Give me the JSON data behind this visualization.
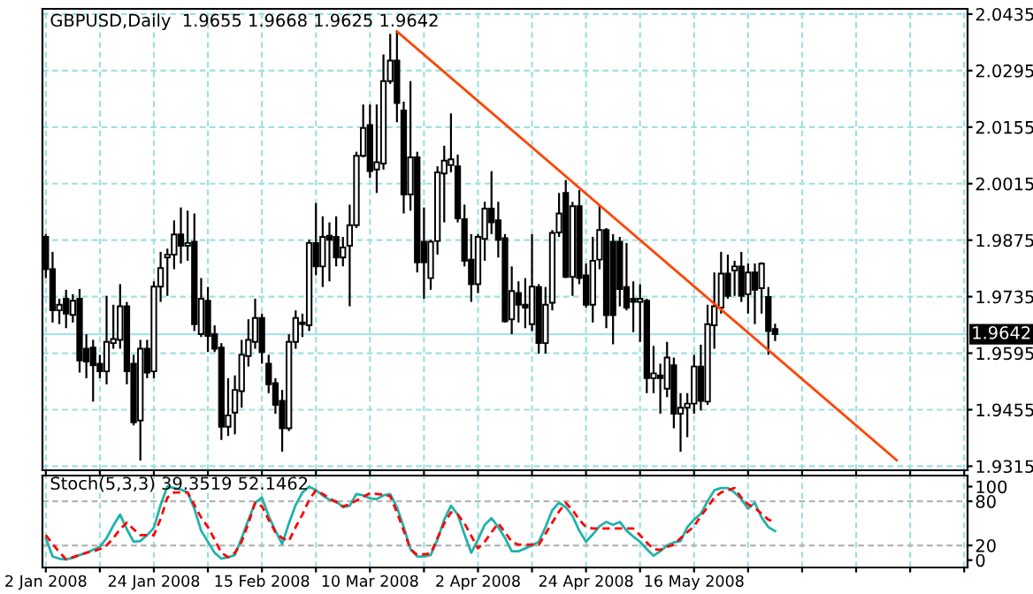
{
  "chart_data": [
    {
      "type": "candlestick",
      "title": "GBPUSD,Daily  1.9655 1.9668 1.9625 1.9642",
      "categories": [
        null,
        null,
        null,
        null,
        null,
        null,
        null,
        null,
        null,
        null,
        null,
        null,
        null,
        null,
        null,
        null,
        null,
        null,
        null,
        null,
        null,
        null,
        null,
        null,
        null,
        null,
        null,
        null,
        null,
        null,
        null,
        null,
        null,
        null,
        null,
        null,
        null,
        null,
        null,
        null,
        null,
        null,
        null,
        null,
        null,
        null,
        null,
        null,
        null,
        null,
        null,
        null,
        null,
        null,
        null,
        null,
        null,
        null,
        null,
        null,
        null,
        null,
        null,
        null,
        null,
        null,
        null,
        null,
        null,
        null,
        null,
        null,
        null,
        null,
        null,
        null,
        null,
        null,
        null,
        null,
        null,
        null,
        null,
        null,
        null,
        null,
        null,
        null,
        null,
        null,
        null,
        null,
        null,
        null,
        null,
        null,
        null,
        null,
        null,
        null,
        null,
        null,
        null,
        null,
        null,
        null,
        null,
        null,
        null,
        null,
        null,
        null,
        null,
        null,
        null,
        null,
        null,
        null,
        null,
        null,
        null,
        null,
        null,
        null,
        null,
        null,
        null,
        null,
        null,
        null,
        null,
        null,
        null,
        null,
        null,
        null,
        null
      ],
      "ohlc": [
        [
          1.9883,
          1.989,
          1.9781,
          1.9803
        ],
        [
          1.9803,
          1.9846,
          1.9671,
          1.9701
        ],
        [
          1.9701,
          1.973,
          1.9667,
          1.9715
        ],
        [
          1.973,
          1.9752,
          1.9657,
          1.9693
        ],
        [
          1.969,
          1.9741,
          1.9671,
          1.9725
        ],
        [
          1.973,
          1.9754,
          1.9547,
          1.9577
        ],
        [
          1.9606,
          1.9642,
          1.9533,
          1.9574
        ],
        [
          1.9609,
          1.9628,
          1.9475,
          1.9565
        ],
        [
          1.9569,
          1.9591,
          1.9533,
          1.955
        ],
        [
          1.955,
          1.9737,
          1.9518,
          1.9623
        ],
        [
          1.962,
          1.9715,
          1.9606,
          1.963
        ],
        [
          1.9628,
          1.9766,
          1.9606,
          1.9711
        ],
        [
          1.9711,
          1.9722,
          1.9518,
          1.955
        ],
        [
          1.9569,
          1.9591,
          1.9416,
          1.9424
        ],
        [
          1.9428,
          1.9628,
          1.9329,
          1.9606
        ],
        [
          1.9606,
          1.9628,
          1.9533,
          1.9547
        ],
        [
          1.955,
          1.9773,
          1.9533,
          1.976
        ],
        [
          1.976,
          1.9846,
          1.9722,
          1.9806
        ],
        [
          1.9832,
          1.9854,
          1.9737,
          1.9839
        ],
        [
          1.9839,
          1.9924,
          1.9803,
          1.9889
        ],
        [
          1.9889,
          1.9956,
          1.9817,
          1.9861
        ],
        [
          1.9861,
          1.9948,
          1.9824,
          1.9868
        ],
        [
          1.9871,
          1.9941,
          1.965,
          1.9667
        ],
        [
          1.9642,
          1.9781,
          1.9635,
          1.973
        ],
        [
          1.9725,
          1.9759,
          1.9598,
          1.9638
        ],
        [
          1.9642,
          1.9664,
          1.9598,
          1.9606
        ],
        [
          1.9609,
          1.962,
          1.938,
          1.9413
        ],
        [
          1.9413,
          1.9533,
          1.939,
          1.9441
        ],
        [
          1.9448,
          1.954,
          1.9394,
          1.9504
        ],
        [
          1.9501,
          1.9628,
          1.946,
          1.9591
        ],
        [
          1.9588,
          1.9679,
          1.9562,
          1.9628
        ],
        [
          1.9623,
          1.973,
          1.9606,
          1.9682
        ],
        [
          1.9682,
          1.9693,
          1.9569,
          1.9598
        ],
        [
          1.9569,
          1.9591,
          1.9496,
          1.9518
        ],
        [
          1.9521,
          1.9533,
          1.9445,
          1.9467
        ],
        [
          1.9477,
          1.9504,
          1.9351,
          1.9409
        ],
        [
          1.9409,
          1.9642,
          1.9402,
          1.9623
        ],
        [
          1.9623,
          1.9701,
          1.9606,
          1.9682
        ],
        [
          1.9667,
          1.9693,
          1.9635,
          1.9671
        ],
        [
          1.9664,
          1.9876,
          1.965,
          1.9868
        ],
        [
          1.9868,
          1.9967,
          1.9788,
          1.981
        ],
        [
          1.981,
          1.9934,
          1.9759,
          1.9883
        ],
        [
          1.9886,
          1.9919,
          1.9773,
          1.9876
        ],
        [
          1.9883,
          1.9934,
          1.981,
          1.9832
        ],
        [
          1.9832,
          1.9883,
          1.981,
          1.9857
        ],
        [
          1.9861,
          1.9963,
          1.9711,
          1.9912
        ],
        [
          1.9912,
          2.0094,
          1.9905,
          2.0084
        ],
        [
          2.0084,
          2.0211,
          2.008,
          2.0153
        ],
        [
          2.016,
          2.0211,
          2.0029,
          2.0046
        ],
        [
          2.005,
          2.0211,
          1.9992,
          2.0068
        ],
        [
          2.0065,
          2.0335,
          2.005,
          2.0269
        ],
        [
          2.0269,
          2.0386,
          2.0262,
          2.032
        ],
        [
          2.032,
          2.0393,
          2.0167,
          2.0215
        ],
        [
          2.0196,
          2.0218,
          1.9941,
          1.9988
        ],
        [
          1.9988,
          2.0269,
          1.9948,
          2.008
        ],
        [
          2.008,
          2.0094,
          1.9795,
          1.982
        ],
        [
          1.9871,
          1.9956,
          1.973,
          1.982
        ],
        [
          1.9781,
          1.9876,
          1.9752,
          1.9871
        ],
        [
          1.9873,
          2.0058,
          1.9839,
          2.0043
        ],
        [
          2.004,
          2.0109,
          1.9919,
          2.0072
        ],
        [
          2.0061,
          2.0189,
          2.0043,
          2.0075
        ],
        [
          2.0058,
          2.0087,
          1.9919,
          1.9929
        ],
        [
          1.9927,
          1.9963,
          1.981,
          1.9824
        ],
        [
          1.9827,
          1.989,
          1.9722,
          1.9766
        ],
        [
          1.9766,
          1.989,
          1.9744,
          1.9883
        ],
        [
          1.9878,
          1.997,
          1.9824,
          1.9953
        ],
        [
          1.9953,
          2.0046,
          1.989,
          1.9919
        ],
        [
          1.9924,
          1.997,
          1.9832,
          1.9876
        ],
        [
          1.988,
          1.989,
          1.9671,
          1.9674
        ],
        [
          1.9679,
          1.981,
          1.9642,
          1.9749
        ],
        [
          1.9744,
          1.9773,
          1.9671,
          1.9715
        ],
        [
          1.9715,
          1.9781,
          1.9657,
          1.9708
        ],
        [
          1.9667,
          1.989,
          1.965,
          1.976
        ],
        [
          1.9759,
          1.9766,
          1.9594,
          1.962
        ],
        [
          1.962,
          1.9759,
          1.9594,
          1.9715
        ],
        [
          1.972,
          1.99,
          1.9701,
          1.9893
        ],
        [
          1.9894,
          1.9992,
          1.9883,
          1.9941
        ],
        [
          1.9992,
          2.0024,
          1.9781,
          1.9784
        ],
        [
          1.9784,
          1.997,
          1.9737,
          1.9959
        ],
        [
          1.9959,
          1.9999,
          1.9766,
          1.9781
        ],
        [
          1.9788,
          1.9817,
          1.9708,
          1.9715
        ],
        [
          1.9715,
          1.9883,
          1.9671,
          1.9824
        ],
        [
          1.9827,
          1.9963,
          1.9803,
          1.99
        ],
        [
          1.99,
          1.9905,
          1.9657,
          1.9689
        ],
        [
          1.9871,
          1.989,
          1.9617,
          1.9689
        ],
        [
          1.9871,
          1.9883,
          1.9711,
          1.9754
        ],
        [
          1.9759,
          1.9868,
          1.9701,
          1.9708
        ],
        [
          1.973,
          1.9773,
          1.9647,
          1.9722
        ],
        [
          1.9722,
          1.9766,
          1.9623,
          1.973
        ],
        [
          1.9725,
          1.973,
          1.9496,
          1.9533
        ],
        [
          1.9533,
          1.9613,
          1.9496,
          1.9545
        ],
        [
          1.954,
          1.9569,
          1.9445,
          1.9533
        ],
        [
          1.9507,
          1.9623,
          1.9486,
          1.9584
        ],
        [
          1.9565,
          1.9584,
          1.9409,
          1.9445
        ],
        [
          1.9445,
          1.9496,
          1.9351,
          1.946
        ],
        [
          1.946,
          1.9496,
          1.9387,
          1.947
        ],
        [
          1.947,
          1.9591,
          1.9445,
          1.9562
        ],
        [
          1.9562,
          1.9616,
          1.9453,
          1.9477
        ],
        [
          1.9475,
          1.9715,
          1.9467,
          1.9667
        ],
        [
          1.9664,
          1.9795,
          1.9606,
          1.9711
        ],
        [
          1.9708,
          1.9846,
          1.9693,
          1.9792
        ],
        [
          1.9792,
          1.9839,
          1.973,
          1.9737
        ],
        [
          1.98,
          1.9824,
          1.9737,
          1.981
        ],
        [
          1.981,
          1.9846,
          1.9722,
          1.9737
        ],
        [
          1.9741,
          1.9817,
          1.9693,
          1.9795
        ],
        [
          1.9795,
          1.9817,
          1.9667,
          1.9752
        ],
        [
          1.9756,
          1.982,
          1.9693,
          1.9817
        ],
        [
          1.9734,
          1.9759,
          1.9591,
          1.965
        ],
        [
          1.9655,
          1.9668,
          1.9625,
          1.9642
        ],
        null,
        null,
        null,
        null,
        null,
        null,
        null,
        null,
        null,
        null,
        null,
        null,
        null,
        null,
        null,
        null,
        null,
        null,
        null,
        null,
        null,
        null,
        null,
        null,
        null,
        null,
        null,
        null
      ],
      "series": [
        {
          "type": "line",
          "color": "#ff4500",
          "values": [
            null,
            null,
            null,
            null,
            null,
            null,
            null,
            null,
            null,
            null,
            null,
            null,
            null,
            null,
            null,
            null,
            null,
            null,
            null,
            null,
            null,
            null,
            null,
            null,
            null,
            null,
            null,
            null,
            null,
            null,
            null,
            null,
            null,
            null,
            null,
            null,
            null,
            null,
            null,
            null,
            null,
            null,
            null,
            null,
            null,
            null,
            null,
            null,
            null,
            null,
            null,
            null,
            2.0392,
            null,
            null,
            null,
            null,
            null,
            null,
            null,
            null,
            null,
            null,
            null,
            null,
            null,
            null,
            null,
            null,
            null,
            null,
            null,
            null,
            null,
            null,
            null,
            null,
            null,
            null,
            null,
            null,
            null,
            null,
            null,
            null,
            null,
            null,
            null,
            null,
            null,
            null,
            null,
            null,
            null,
            null,
            null,
            null,
            null,
            null,
            null,
            null,
            null,
            null,
            null,
            null,
            null,
            null,
            null,
            null,
            null,
            null,
            null,
            null,
            null,
            null,
            null,
            null,
            null,
            null,
            null,
            null,
            null,
            null,
            null,
            null,
            null,
            1.933,
            null,
            null,
            null,
            null,
            null,
            null,
            null,
            null,
            null,
            null
          ]
        }
      ],
      "ylim": [
        1.9305,
        2.0448
      ],
      "yticks": [
        1.9315,
        1.9455,
        1.9595,
        1.9735,
        1.9875,
        2.0015,
        2.0155,
        2.0295,
        2.0435
      ],
      "ref_lines": [
        {
          "axis": "y",
          "value": 1.9642,
          "label": "1.9642",
          "color": "#a8e4e4"
        }
      ],
      "grid": true,
      "tick_labels": "y"
    },
    {
      "type": "line",
      "title": "Stoch(5,3,3) 39.3519 52.1462",
      "categories": [
        "2 Jan 2008",
        null,
        null,
        null,
        null,
        null,
        null,
        null,
        null,
        null,
        null,
        null,
        null,
        null,
        null,
        null,
        "24 Jan 2008",
        null,
        null,
        null,
        null,
        null,
        null,
        null,
        null,
        null,
        null,
        null,
        null,
        null,
        null,
        null,
        "15 Feb 2008",
        null,
        null,
        null,
        null,
        null,
        null,
        null,
        null,
        null,
        null,
        null,
        null,
        null,
        null,
        null,
        "10 Mar 2008",
        null,
        null,
        null,
        null,
        null,
        null,
        null,
        null,
        null,
        null,
        null,
        null,
        null,
        null,
        null,
        "2 Apr 2008",
        null,
        null,
        null,
        null,
        null,
        null,
        null,
        null,
        null,
        null,
        null,
        null,
        null,
        null,
        null,
        "24 Apr 2008",
        null,
        null,
        null,
        null,
        null,
        null,
        null,
        null,
        null,
        null,
        null,
        null,
        null,
        null,
        null,
        "16 May 2008",
        null,
        null,
        null,
        null,
        null,
        null,
        null,
        null,
        null,
        null,
        null,
        null,
        null,
        null,
        null,
        null,
        null,
        null,
        null,
        null,
        null,
        null,
        null,
        null,
        null,
        null,
        null,
        null,
        null,
        null,
        null,
        null,
        null,
        null,
        null,
        null,
        null,
        null,
        null,
        null
      ],
      "series": [
        {
          "color": "#20b2aa",
          "line_style": "solid",
          "values": [
            30,
            5,
            2,
            1,
            3,
            7,
            10,
            14,
            18,
            30,
            47,
            62,
            42,
            25,
            26,
            34,
            44,
            75,
            100,
            98,
            96,
            92,
            70,
            40,
            25,
            10,
            2,
            4,
            7,
            30,
            55,
            78,
            85,
            60,
            40,
            22,
            50,
            75,
            92,
            100,
            95,
            88,
            82,
            80,
            72,
            74,
            90,
            88,
            84,
            83,
            88,
            90,
            72,
            45,
            15,
            5,
            5,
            7,
            28,
            55,
            74,
            62,
            35,
            10,
            28,
            48,
            57,
            45,
            30,
            12,
            12,
            16,
            20,
            25,
            45,
            68,
            78,
            72,
            60,
            40,
            25,
            35,
            46,
            52,
            48,
            52,
            40,
            32,
            25,
            15,
            6,
            12,
            20,
            24,
            26,
            45,
            55,
            63,
            80,
            95,
            98,
            98,
            92,
            83,
            70,
            78,
            58,
            45,
            39.3519,
            null,
            null,
            null,
            null,
            null,
            null,
            null,
            null,
            null,
            null,
            null,
            null,
            null,
            null,
            null,
            null,
            null,
            null,
            null,
            null,
            null,
            null,
            null,
            null,
            null,
            null,
            null,
            null
          ]
        },
        {
          "color": "#ff0000",
          "line_style": "dashed",
          "values": [
            34,
            22,
            11,
            1,
            4,
            7,
            10,
            12,
            15,
            20,
            30,
            42,
            51,
            42,
            34,
            34,
            34,
            56,
            85,
            92,
            92,
            92,
            75,
            58,
            45,
            28,
            10,
            4,
            10,
            25,
            50,
            78,
            73,
            55,
            38,
            30,
            26,
            45,
            62,
            82,
            95,
            90,
            84,
            79,
            73,
            76,
            81,
            86,
            91,
            90,
            89,
            87,
            65,
            40,
            15,
            7,
            8,
            9,
            30,
            50,
            65,
            62,
            50,
            33,
            16,
            25,
            38,
            50,
            38,
            25,
            21,
            21,
            21,
            21,
            36,
            51,
            66,
            78,
            68,
            55,
            45,
            43,
            43,
            43,
            43,
            43,
            43,
            43,
            34,
            24,
            15,
            14,
            18,
            21,
            30,
            38,
            46,
            60,
            72,
            85,
            92,
            95,
            98,
            85,
            76,
            71,
            63,
            55,
            52.1462,
            null,
            null,
            null,
            null,
            null,
            null,
            null,
            null,
            null,
            null,
            null,
            null,
            null,
            null,
            null,
            null,
            null,
            null,
            null,
            null,
            null,
            null,
            null,
            null,
            null,
            null,
            null,
            null
          ]
        }
      ],
      "ylim": [
        -10,
        115
      ],
      "yticks": [
        0,
        20,
        80,
        100
      ],
      "ref_lines": [
        {
          "axis": "y",
          "value": 20,
          "color": "#b4b4b4",
          "line_style": "dashed"
        },
        {
          "axis": "y",
          "value": 80,
          "color": "#b4b4b4",
          "line_style": "dashed"
        }
      ],
      "grid": "x"
    }
  ]
}
